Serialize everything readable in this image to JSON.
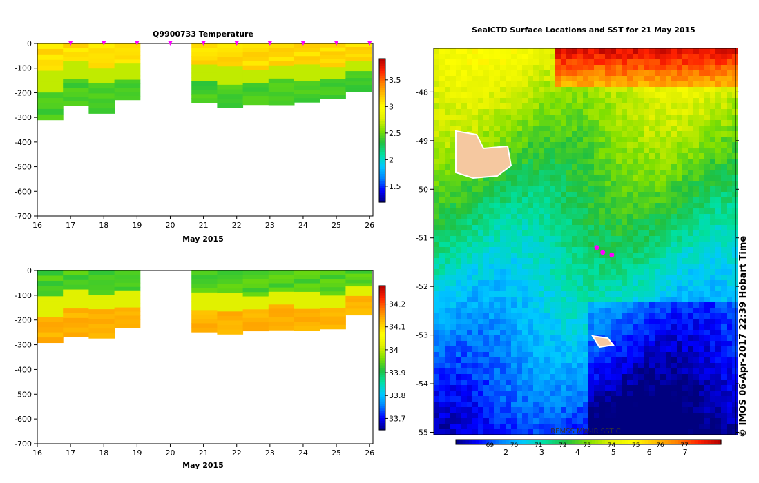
{
  "chart_data": [
    {
      "type": "heatmap",
      "title": "Q9900733  Temperature",
      "xlabel": "May 2015",
      "ylabel": "",
      "x_ticks": [
        "16",
        "17",
        "18",
        "19",
        "20",
        "21",
        "22",
        "23",
        "24",
        "25",
        "26"
      ],
      "xlim": [
        16,
        26.1
      ],
      "y_ticks": [
        "0",
        "-100",
        "-200",
        "-300",
        "-400",
        "-500",
        "-600",
        "-700"
      ],
      "ylim": [
        -700,
        0
      ],
      "colorbar": {
        "ticks": [
          "1.5",
          "2",
          "2.5",
          "3",
          "3.5"
        ],
        "range": [
          1.2,
          3.9
        ]
      },
      "profile_markers_day": [
        17,
        18,
        19,
        20,
        21,
        22,
        23,
        24,
        25,
        26
      ],
      "gap": [
        19.6,
        20.2
      ],
      "profile_depths_m": [
        310,
        270,
        285,
        240,
        248,
        292,
        252,
        264,
        255,
        260,
        258,
        240,
        200
      ],
      "upper_layer_value": 3.05,
      "lower_layer_value": 2.35
    },
    {
      "type": "heatmap",
      "title": "",
      "xlabel": "May 2015",
      "ylabel": "",
      "x_ticks": [
        "16",
        "17",
        "18",
        "19",
        "20",
        "21",
        "22",
        "23",
        "24",
        "25",
        "26"
      ],
      "xlim": [
        16,
        26.1
      ],
      "y_ticks": [
        "0",
        "-100",
        "-200",
        "-300",
        "-400",
        "-500",
        "-600",
        "-700"
      ],
      "ylim": [
        -700,
        0
      ],
      "colorbar": {
        "ticks": [
          "33.7",
          "33.8",
          "33.9",
          "34",
          "34.1",
          "34.2"
        ],
        "range": [
          33.65,
          34.28
        ]
      },
      "gap": [
        19.6,
        20.2
      ],
      "upper_layer_value": 33.92,
      "lower_layer_value": 34.12
    },
    {
      "type": "heatmap",
      "title": "SealCTD Surface Locations and SST for 21 May 2015",
      "y_ticks": [
        "-48",
        "-49",
        "-50",
        "-51",
        "-52",
        "-53",
        "-54",
        "-55"
      ],
      "ylim": [
        -55.05,
        -47.1
      ],
      "colorbar": {
        "ticks_celsius": [
          "2",
          "3",
          "4",
          "5",
          "6",
          "7"
        ],
        "ticks_fahrenheit": [
          "69",
          "70",
          "71",
          "72",
          "73",
          "74",
          "75",
          "76",
          "77"
        ],
        "label": "REMSS MW-IR SST C"
      },
      "seal_track_points": [
        [
          0.54,
          -51.2
        ],
        [
          0.56,
          -51.3
        ],
        [
          0.59,
          -51.35
        ]
      ],
      "credit": "© IMOS 06-Apr-2017 22:39 Hobart Time"
    }
  ],
  "colors": {
    "text": "#000000",
    "seal_track": "#ff00ff",
    "land": "#f5c8a0",
    "colormap": [
      "#00007f",
      "#0000ff",
      "#0080ff",
      "#00c8ff",
      "#00e0a0",
      "#20c040",
      "#80e000",
      "#e0f000",
      "#ffff00",
      "#ffc000",
      "#ff8000",
      "#ff2000",
      "#b00000"
    ]
  }
}
